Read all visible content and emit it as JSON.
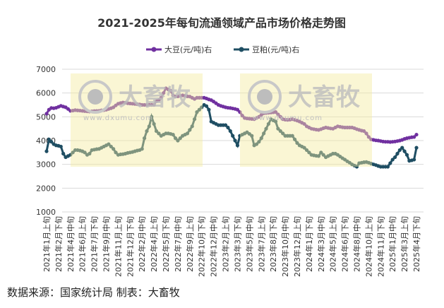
{
  "chart_data": {
    "type": "line",
    "title": "2021-2025年每旬流通领域产品市场价格走势图",
    "ylim": [
      1000,
      7000
    ],
    "yticks": [
      1000,
      2000,
      3000,
      4000,
      5000,
      6000,
      7000
    ],
    "grid": true,
    "legend_position": "top",
    "xtick_interval": 5,
    "xtick_labels": [
      "2021年1月上旬",
      "2021年2月下旬",
      "2021年4月中旬",
      "2021年6月上旬",
      "2021年7月下旬",
      "2021年9月中旬",
      "2021年11月上旬",
      "2021年12月下旬",
      "2022年2月中旬",
      "2022年4月上旬",
      "2022年5月下旬",
      "2022年7月中旬",
      "2022年9月上旬",
      "2022年10月下旬",
      "2022年12月中旬",
      "2023年2月上旬",
      "2023年3月下旬",
      "2023年5月中旬",
      "2023年7月上旬",
      "2023年8月下旬",
      "2023年10月中旬",
      "2023年12月上旬",
      "2024年1月下旬",
      "2024年3月中旬",
      "2024年5月上旬",
      "2024年6月下旬",
      "2024年8月中旬",
      "2024年10月上旬",
      "2024年11月下旬",
      "2025年1月中旬",
      "2025年3月上旬",
      "2025年4月下旬"
    ],
    "series": [
      {
        "name": "大豆(元/吨)右",
        "color": "#7030a0",
        "values": [
          5130,
          5300,
          5370,
          5360,
          5380,
          5420,
          5460,
          5430,
          5400,
          5330,
          5250,
          5260,
          5280,
          5270,
          5260,
          5250,
          5240,
          5230,
          5220,
          5230,
          5240,
          5245,
          5250,
          5270,
          5280,
          5300,
          5330,
          5360,
          5400,
          5480,
          5550,
          5580,
          5600,
          5590,
          5570,
          5560,
          5550,
          5540,
          5530,
          5520,
          5500,
          5500,
          5500,
          5500,
          5500,
          5500,
          5660,
          5700,
          5800,
          6000,
          6200,
          6150,
          6100,
          5900,
          5850,
          5860,
          5880,
          5900,
          5880,
          5860,
          5850,
          5800,
          5750,
          5800,
          5800,
          5800,
          5800,
          5770,
          5730,
          5700,
          5640,
          5570,
          5500,
          5460,
          5430,
          5400,
          5380,
          5370,
          5350,
          5330,
          5300,
          5200,
          5050,
          4950,
          4930,
          4920,
          4910,
          4900,
          4950,
          5000,
          5080,
          5150,
          5160,
          5170,
          5180,
          5190,
          5200,
          5100,
          5000,
          4900,
          4880,
          4870,
          4880,
          4900,
          4870,
          4840,
          4800,
          4750,
          4700,
          4600,
          4550,
          4500,
          4480,
          4460,
          4450,
          4480,
          4520,
          4550,
          4530,
          4510,
          4500,
          4550,
          4600,
          4580,
          4560,
          4550,
          4550,
          4550,
          4550,
          4520,
          4480,
          4450,
          4420,
          4400,
          4300,
          4150,
          4050,
          4030,
          4010,
          4000,
          3980,
          3960,
          3950,
          3950,
          3940,
          3950,
          3960,
          3980,
          4000,
          4030,
          4070,
          4100,
          4120,
          4140,
          4150,
          4250
        ]
      },
      {
        "name": "豆粕(元/吨)右",
        "color": "#1f4e63",
        "values": [
          3550,
          4050,
          3950,
          3850,
          3800,
          3780,
          3750,
          3450,
          3300,
          3350,
          3400,
          3500,
          3600,
          3600,
          3580,
          3550,
          3500,
          3400,
          3450,
          3600,
          3620,
          3640,
          3650,
          3700,
          3750,
          3800,
          3850,
          3750,
          3650,
          3500,
          3400,
          3420,
          3430,
          3450,
          3480,
          3500,
          3520,
          3550,
          3580,
          3600,
          3650,
          4100,
          4400,
          4600,
          5000,
          4700,
          4400,
          4300,
          4200,
          4250,
          4300,
          4300,
          4280,
          4250,
          4100,
          4000,
          4100,
          4200,
          4250,
          4300,
          4450,
          4600,
          4900,
          5200,
          5300,
          5400,
          5500,
          5450,
          5300,
          4800,
          4750,
          4700,
          4650,
          4650,
          4650,
          4650,
          4550,
          4400,
          4200,
          4000,
          3800,
          4200,
          4250,
          4300,
          4350,
          4280,
          4200,
          3800,
          3850,
          3950,
          4100,
          4300,
          4500,
          4700,
          4900,
          4850,
          4800,
          4500,
          4400,
          4300,
          4200,
          4200,
          4200,
          4200,
          4050,
          3900,
          3800,
          3750,
          3700,
          3600,
          3500,
          3400,
          3380,
          3360,
          3350,
          3500,
          3400,
          3300,
          3350,
          3400,
          3450,
          3450,
          3400,
          3330,
          3260,
          3200,
          3130,
          3070,
          3000,
          2950,
          2900,
          3050,
          3070,
          3090,
          3100,
          3070,
          3030,
          3000,
          2970,
          2930,
          2900,
          2900,
          2900,
          2900,
          3050,
          3200,
          3300,
          3450,
          3600,
          3700,
          3550,
          3400,
          3150,
          3170,
          3200,
          3700
        ]
      }
    ]
  },
  "watermark": {
    "brand": "大畜牧",
    "site": "www.dxumu.com"
  },
  "source": "数据来源：国家统计局 制表：大畜牧"
}
